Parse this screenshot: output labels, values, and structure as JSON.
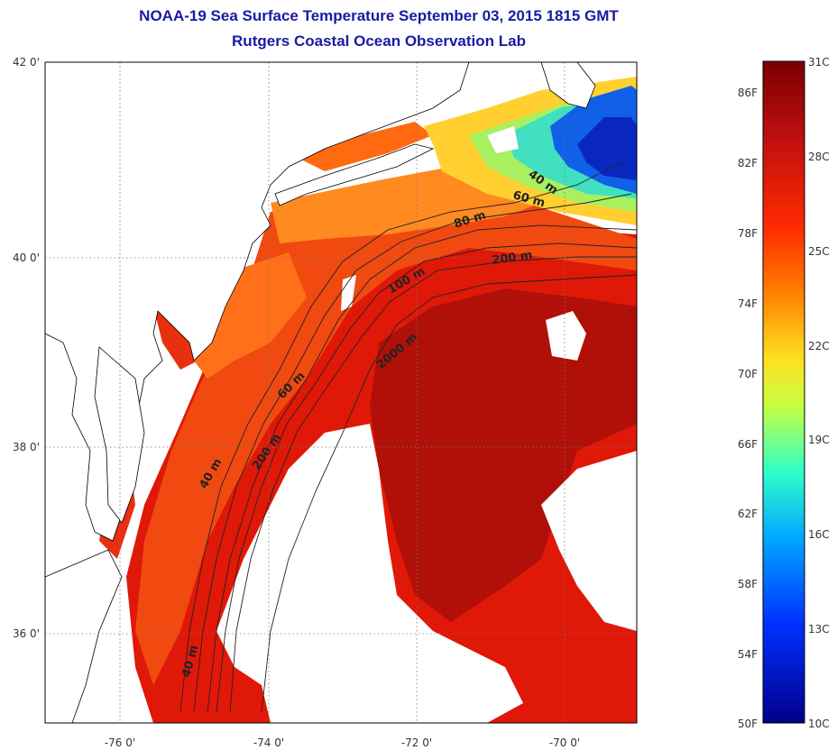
{
  "title": "NOAA-19 Sea Surface Temperature September 03, 2015 1815 GMT",
  "subtitle": "Rutgers Coastal Ocean Observation Lab",
  "map": {
    "lat_ticks": [
      "42 0'",
      "40 0'",
      "38 0'",
      "36 0'"
    ],
    "lon_ticks": [
      "-76 0'",
      "-74 0'",
      "-72 0'",
      "-70 0'"
    ],
    "contour_labels": [
      "40 m",
      "60 m",
      "80 m",
      "200 m",
      "100 m",
      "2000 m",
      "60 m",
      "200 m",
      "40 m",
      "40 m"
    ],
    "grid": "dotted"
  },
  "colorbar": {
    "f_labels": [
      "86F",
      "82F",
      "78F",
      "74F",
      "70F",
      "66F",
      "62F",
      "58F",
      "54F",
      "50F"
    ],
    "c_labels": [
      "31C",
      "28C",
      "25C",
      "22C",
      "19C",
      "16C",
      "13C",
      "10C"
    ],
    "colors": [
      "#7a0000",
      "#c01010",
      "#ff3000",
      "#ff8000",
      "#ffd020",
      "#c0ff40",
      "#40ffc0",
      "#00a0ff",
      "#0030ff",
      "#00008a"
    ]
  }
}
